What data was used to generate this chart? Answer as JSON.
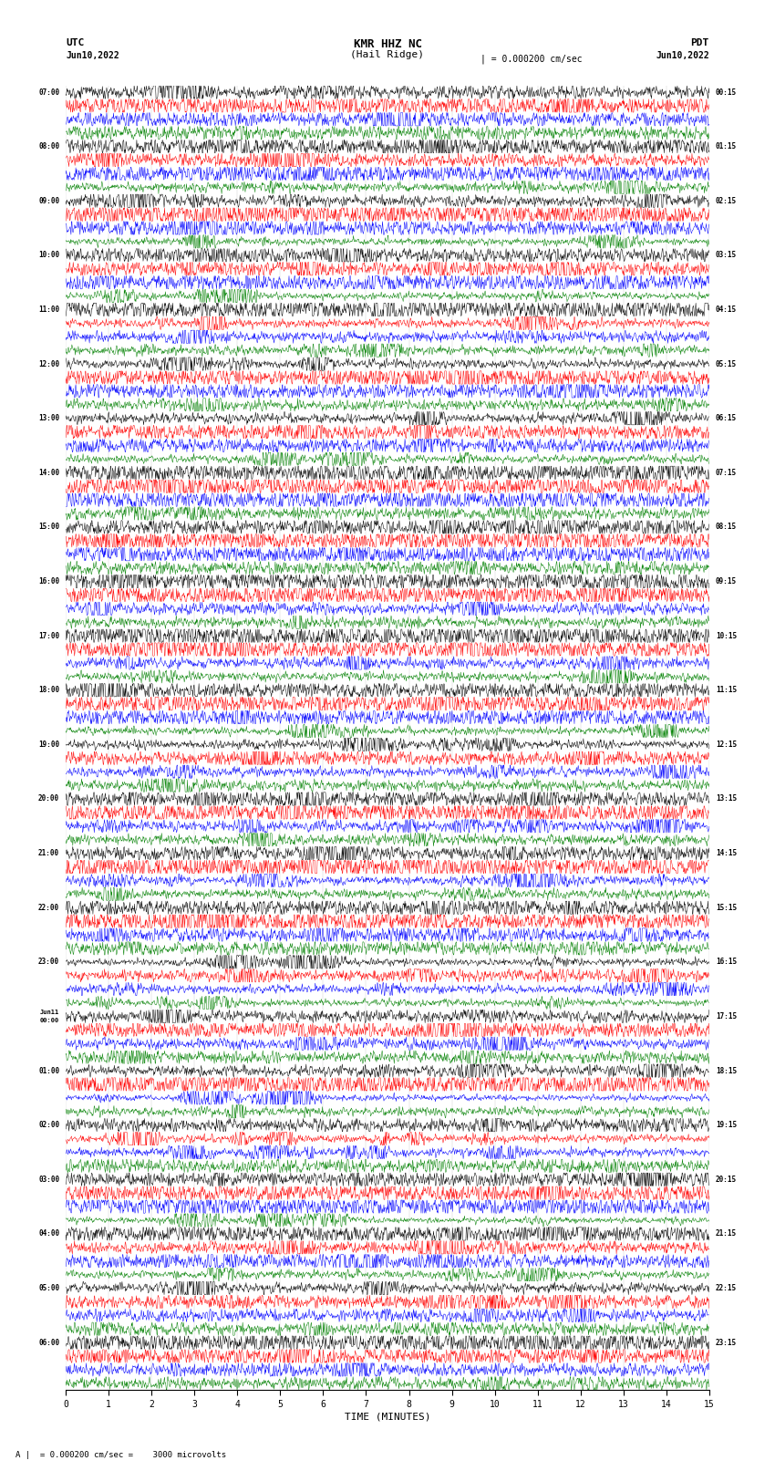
{
  "title_line1": "KMR HHZ NC",
  "title_line2": "(Hail Ridge)",
  "scale_text": "| = 0.000200 cm/sec",
  "left_label": "UTC",
  "left_date": "Jun10,2022",
  "right_label": "PDT",
  "right_date": "Jun10,2022",
  "bottom_label": "TIME (MINUTES)",
  "bottom_note": "A |  = 0.000200 cm/sec =    3000 microvolts",
  "xlim": [
    0,
    15
  ],
  "xticks": [
    0,
    1,
    2,
    3,
    4,
    5,
    6,
    7,
    8,
    9,
    10,
    11,
    12,
    13,
    14,
    15
  ],
  "colors": [
    "black",
    "red",
    "blue",
    "green"
  ],
  "num_groups": 24,
  "row_colors_cycle": [
    "black",
    "red",
    "blue",
    "green"
  ],
  "left_times": [
    "07:00",
    "08:00",
    "09:00",
    "10:00",
    "11:00",
    "12:00",
    "13:00",
    "14:00",
    "15:00",
    "16:00",
    "17:00",
    "18:00",
    "19:00",
    "20:00",
    "21:00",
    "22:00",
    "23:00",
    "Jun11\n00:00",
    "01:00",
    "02:00",
    "03:00",
    "04:00",
    "05:00",
    "06:00"
  ],
  "right_times": [
    "00:15",
    "01:15",
    "02:15",
    "03:15",
    "04:15",
    "05:15",
    "06:15",
    "07:15",
    "08:15",
    "09:15",
    "10:15",
    "11:15",
    "12:15",
    "13:15",
    "14:15",
    "15:15",
    "16:15",
    "17:15",
    "18:15",
    "19:15",
    "20:15",
    "21:15",
    "22:15",
    "23:15"
  ],
  "plot_bg": "white",
  "line_width": 0.35,
  "amplitude_scale": 0.38,
  "seed": 42
}
